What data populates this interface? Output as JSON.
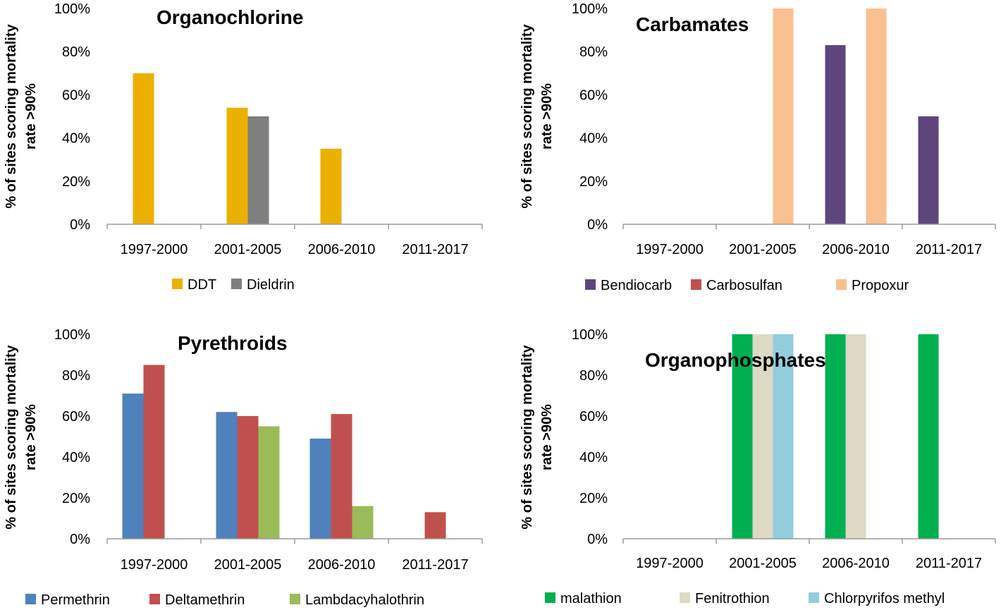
{
  "chart_data": [
    {
      "type": "bar",
      "title": "Organochlorine",
      "ylabel_lines": [
        "% of sites scoring mortality",
        "rate >90%"
      ],
      "ylim": [
        0,
        100
      ],
      "yticks": [
        "0%",
        "20%",
        "40%",
        "60%",
        "80%",
        "100%"
      ],
      "categories": [
        "1997-2000",
        "2001-2005",
        "2006-2010",
        "2011-2017"
      ],
      "legend_position": "bottom",
      "series": [
        {
          "name": "DDT",
          "color": "#ecb000",
          "values": [
            70,
            54,
            35,
            0
          ]
        },
        {
          "name": "Dieldrin",
          "color": "#7f7f7f",
          "values": [
            0,
            50,
            0,
            0
          ]
        }
      ]
    },
    {
      "type": "bar",
      "title": "Carbamates",
      "ylabel_lines": [
        "% of sites scoring mortality",
        "rate >90%"
      ],
      "ylim": [
        0,
        100
      ],
      "yticks": [
        "0%",
        "20%",
        "40%",
        "60%",
        "80%",
        "100%"
      ],
      "categories": [
        "1997-2000",
        "2001-2005",
        "2006-2010",
        "2011-2017"
      ],
      "legend_position": "bottom",
      "series": [
        {
          "name": "Bendiocarb",
          "color": "#5e467c",
          "values": [
            0,
            0,
            83,
            50
          ]
        },
        {
          "name": "Carbosulfan",
          "color": "#c0504d",
          "values": [
            0,
            0,
            0,
            0
          ]
        },
        {
          "name": "Propoxur",
          "color": "#fac090",
          "values": [
            0,
            100,
            100,
            0
          ]
        }
      ]
    },
    {
      "type": "bar",
      "title": "Pyrethroids",
      "ylabel_lines": [
        "% of sites scoring mortality",
        "rate >90%"
      ],
      "ylim": [
        0,
        100
      ],
      "yticks": [
        "0%",
        "20%",
        "40%",
        "60%",
        "80%",
        "100%"
      ],
      "categories": [
        "1997-2000",
        "2001-2005",
        "2006-2010",
        "2011-2017"
      ],
      "legend_position": "bottom",
      "series": [
        {
          "name": "Permethrin",
          "color": "#4f81bd",
          "values": [
            71,
            62,
            49,
            0
          ]
        },
        {
          "name": "Deltamethrin",
          "color": "#c0504d",
          "values": [
            85,
            60,
            61,
            13
          ]
        },
        {
          "name": "Lambdacyhalothrin",
          "color": "#9bbb59",
          "values": [
            0,
            55,
            16,
            0
          ]
        }
      ]
    },
    {
      "type": "bar",
      "title": "Organophosphates",
      "ylabel_lines": [
        "% of sites scoring mortality",
        "rate >90%"
      ],
      "ylim": [
        0,
        100
      ],
      "yticks": [
        "0%",
        "20%",
        "40%",
        "60%",
        "80%",
        "100%"
      ],
      "categories": [
        "1997-2000",
        "2001-2005",
        "2006-2010",
        "2011-2017"
      ],
      "legend_position": "bottom",
      "series": [
        {
          "name": "malathion",
          "color": "#00b050",
          "values": [
            0,
            100,
            100,
            100
          ]
        },
        {
          "name": "Fenitrothion",
          "color": "#ddd9c4",
          "values": [
            0,
            100,
            100,
            0
          ]
        },
        {
          "name": "Chlorpyrifos methyl",
          "color": "#92cddc",
          "values": [
            0,
            100,
            0,
            0
          ]
        }
      ]
    }
  ]
}
